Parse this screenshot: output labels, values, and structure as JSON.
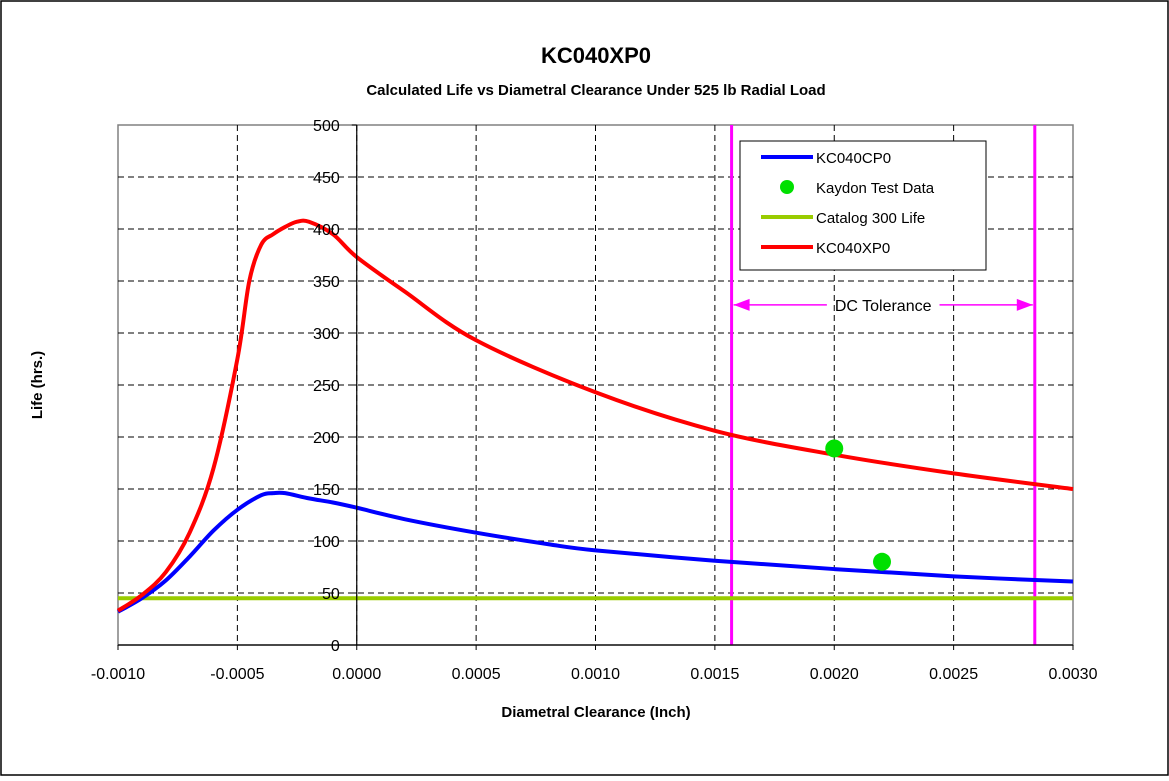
{
  "chart_data": {
    "type": "line",
    "title": "KC040XP0",
    "subtitle": "Calculated Life vs Diametral Clearance Under 525 lb Radial Load",
    "xlabel": "Diametral Clearance (Inch)",
    "ylabel": "Life (hrs.)",
    "xlim": [
      -0.001,
      0.003
    ],
    "ylim": [
      0,
      500
    ],
    "x_ticks": [
      "-0.0010",
      "-0.0005",
      "0.0000",
      "0.0005",
      "0.0010",
      "0.0015",
      "0.0020",
      "0.0025",
      "0.0030"
    ],
    "y_ticks": [
      "0",
      "50",
      "100",
      "150",
      "200",
      "250",
      "300",
      "350",
      "400",
      "450",
      "500"
    ],
    "grid": true,
    "legend_position": "top-right",
    "series": [
      {
        "name": "KC040CP0",
        "kind": "line",
        "color": "#0000ff",
        "x": [
          -0.001,
          -0.0009,
          -0.0008,
          -0.0007,
          -0.0006,
          -0.0005,
          -0.0004,
          -0.00035,
          -0.0003,
          -0.0002,
          -0.0001,
          0.0,
          0.0002,
          0.0005,
          0.0008,
          0.001,
          0.0015,
          0.002,
          0.0025,
          0.003
        ],
        "y": [
          32,
          45,
          62,
          85,
          110,
          130,
          144,
          146,
          146,
          141,
          137,
          132,
          121,
          108,
          97,
          91,
          81,
          73,
          66,
          61
        ]
      },
      {
        "name": "Kaydon Test Data",
        "kind": "scatter",
        "color": "#00e000",
        "x": [
          0.002,
          0.0022
        ],
        "y": [
          189,
          80
        ]
      },
      {
        "name": "Catalog 300 Life",
        "kind": "line",
        "color": "#99cc00",
        "x": [
          -0.001,
          0.003
        ],
        "y": [
          45,
          45
        ]
      },
      {
        "name": "KC040XP0",
        "kind": "line",
        "color": "#ff0000",
        "x": [
          -0.001,
          -0.0009,
          -0.0008,
          -0.0007,
          -0.0006,
          -0.0005,
          -0.00045,
          -0.0004,
          -0.00035,
          -0.0003,
          -0.00025,
          -0.0002,
          -0.0001,
          0.0,
          0.0002,
          0.0005,
          0.001,
          0.0015,
          0.002,
          0.0025,
          0.003
        ],
        "y": [
          33,
          48,
          70,
          108,
          170,
          275,
          350,
          385,
          395,
          402,
          407,
          407,
          395,
          373,
          340,
          293,
          243,
          206,
          183,
          165,
          150
        ]
      }
    ],
    "tolerance_band": {
      "label": "DC Tolerance",
      "color": "#ff00ff",
      "x_min": 0.00157,
      "x_max": 0.00284,
      "arrow_y": 327
    }
  }
}
